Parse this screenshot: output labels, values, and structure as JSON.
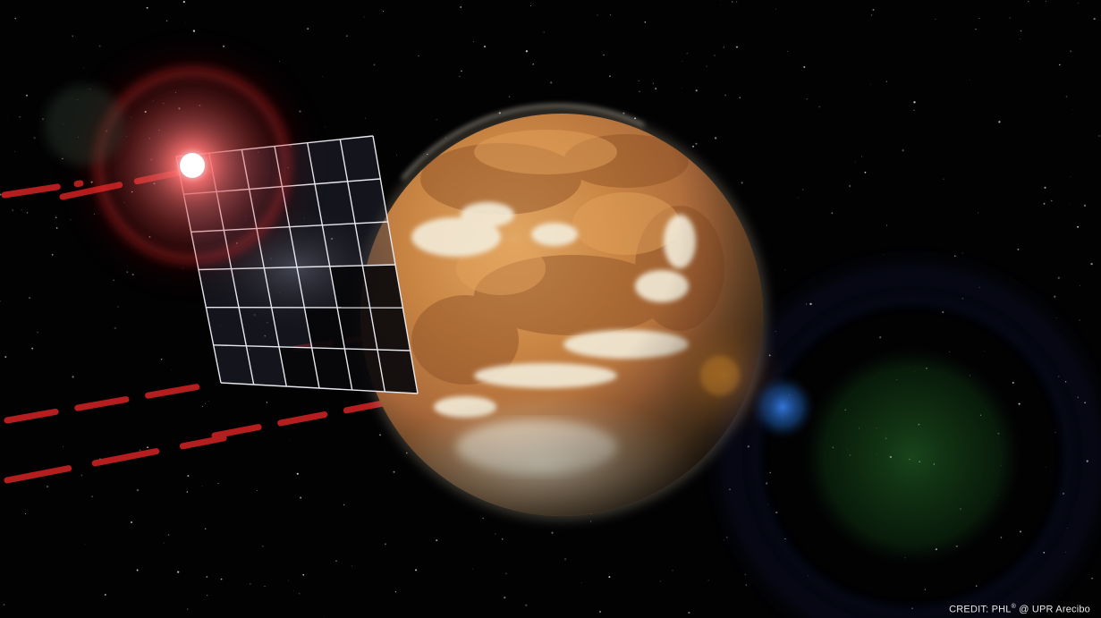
{
  "image": {
    "subject": "planet-with-solar-sail-and-flare",
    "credit_prefix": "CREDIT: PHL",
    "credit_sup": "&#174;",
    "credit_suffix": " @ UPR Arecibo"
  },
  "colors": {
    "space": "#020203",
    "flare_red": "#ff3a3a",
    "planet_orange": "#c8813e",
    "cloud_white": "#f1ead8",
    "lens_green": "#1e6e22",
    "lens_blue": "#2a6fd1"
  }
}
